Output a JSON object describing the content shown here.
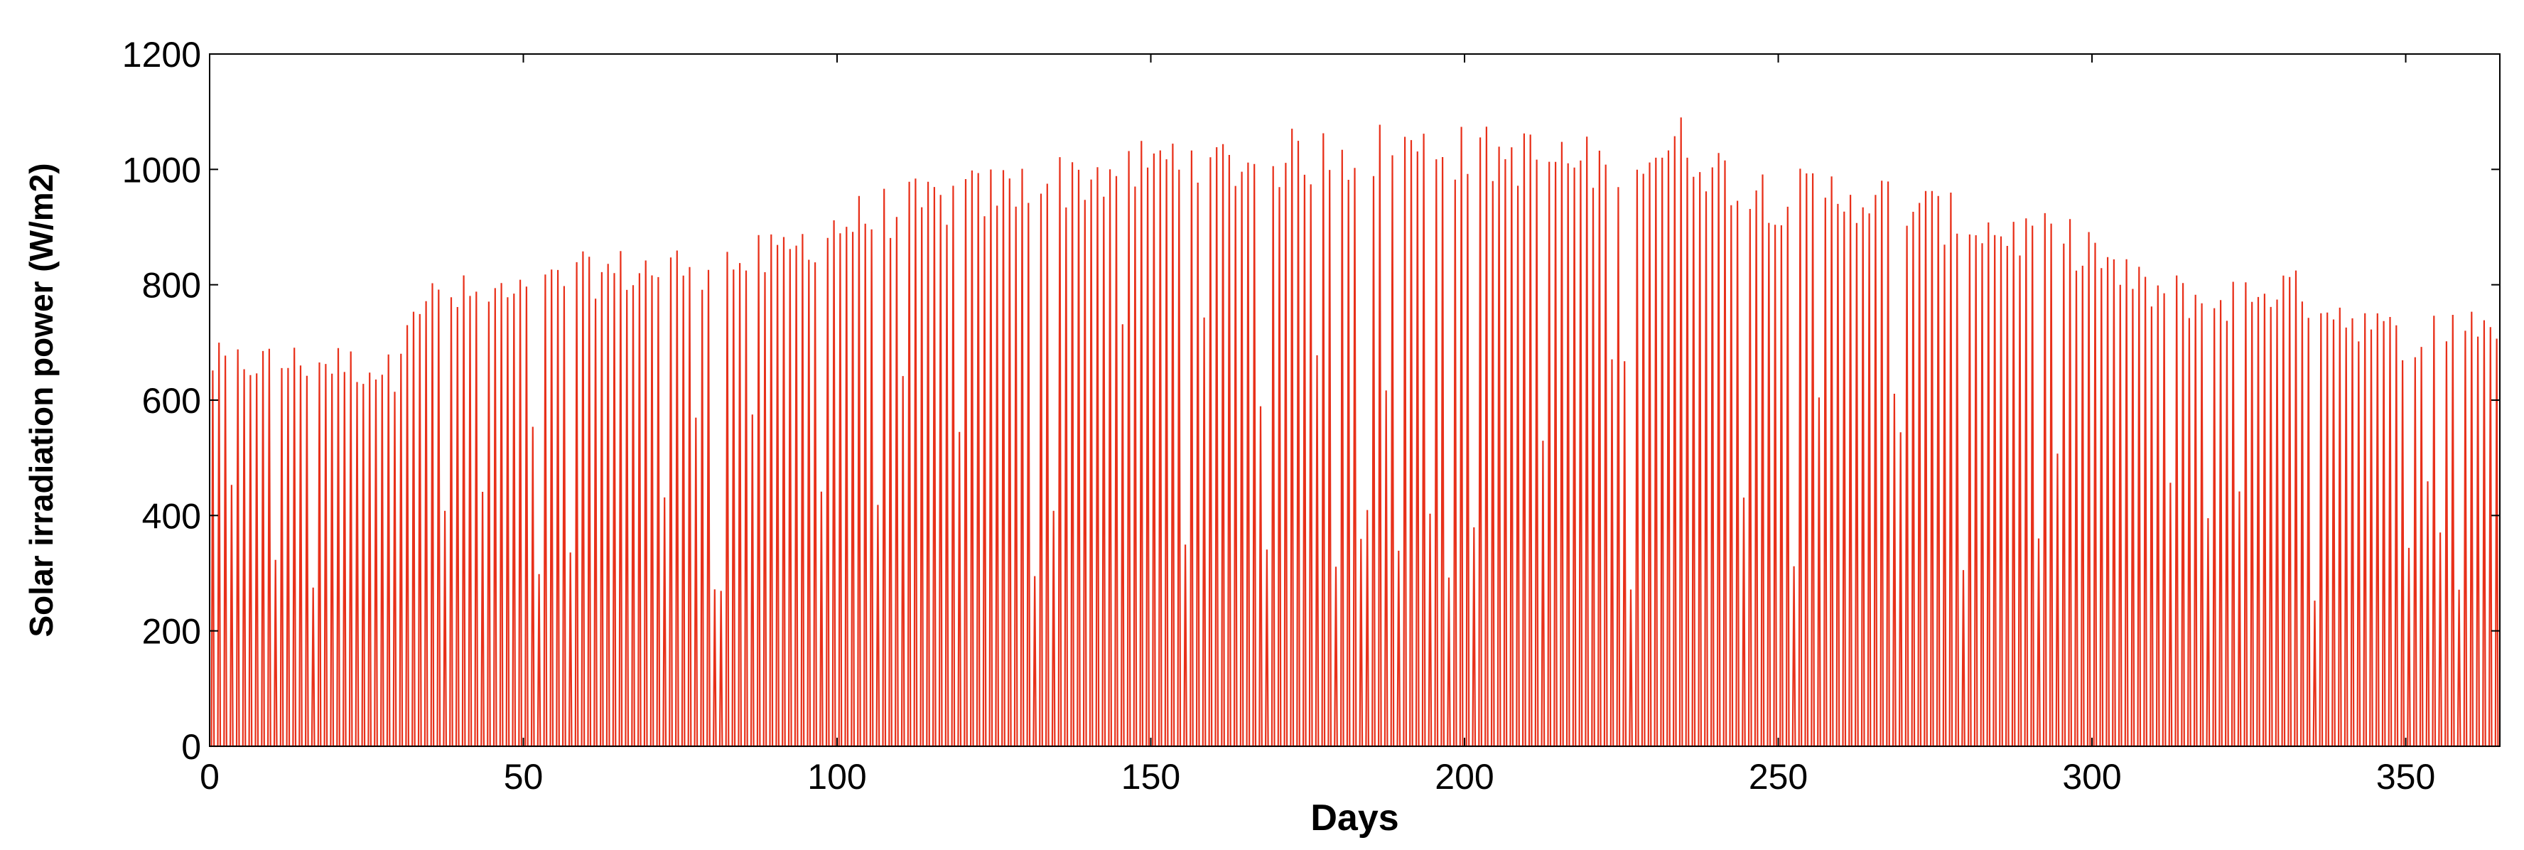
{
  "chart_data": {
    "type": "line",
    "title": "",
    "xlabel": "Days",
    "ylabel": "Solar irradiation power (W/m2)",
    "xlim": [
      0,
      365
    ],
    "ylim": [
      0,
      1200
    ],
    "xticks": [
      0,
      50,
      100,
      150,
      200,
      250,
      300,
      350
    ],
    "yticks": [
      0,
      200,
      400,
      600,
      800,
      1000,
      1200
    ],
    "grid": false,
    "legend": "none",
    "series": [
      {
        "color": "#e8301a",
        "sampling": "daily peak of hourly irradiation, one daily cycle per day",
        "x": [
          0,
          10,
          20,
          30,
          31,
          40,
          50,
          60,
          70,
          80,
          90,
          100,
          110,
          120,
          130,
          140,
          150,
          157,
          160,
          170,
          180,
          190,
          200,
          210,
          220,
          230,
          235,
          240,
          250,
          260,
          270,
          280,
          290,
          300,
          305,
          310,
          320,
          330,
          340,
          350,
          360,
          365
        ],
        "y": [
          700,
          700,
          700,
          680,
          810,
          820,
          820,
          860,
          870,
          880,
          890,
          950,
          980,
          1000,
          1020,
          1040,
          1060,
          1090,
          1060,
          1070,
          1080,
          1090,
          1080,
          1075,
          1060,
          1080,
          1100,
          1050,
          1000,
          1010,
          990,
          950,
          930,
          910,
          850,
          830,
          810,
          840,
          790,
          740,
          780,
          760
        ]
      }
    ]
  }
}
